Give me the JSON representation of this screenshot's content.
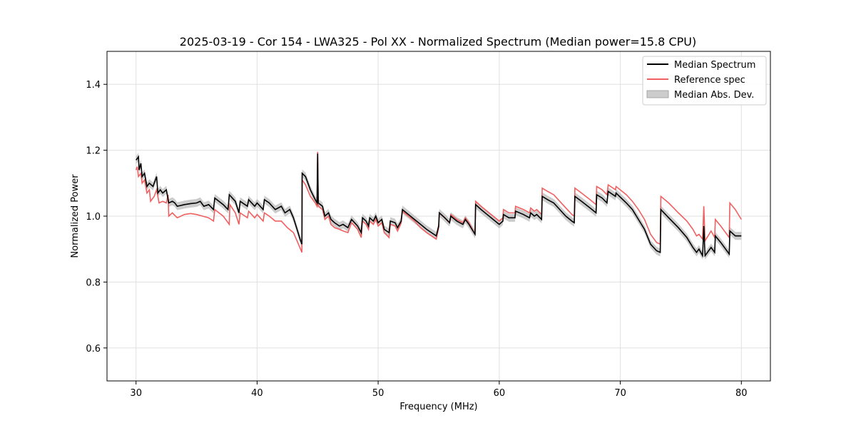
{
  "chart_data": {
    "type": "line",
    "title": "2025-03-19 - Cor 154 - LWA325 - Pol XX - Normalized Spectrum (Median power=15.8 CPU)",
    "xlabel": "Frequency (MHz)",
    "ylabel": "Normalized Power",
    "xlim": [
      27.6,
      82.4
    ],
    "ylim": [
      0.5,
      1.5
    ],
    "xticks": [
      30,
      40,
      50,
      60,
      70,
      80
    ],
    "yticks": [
      0.6,
      0.8,
      1.0,
      1.2,
      1.4
    ],
    "grid": true,
    "legend_position": "upper right",
    "legend": [
      "Median Spectrum",
      "Reference spec",
      "Median Abs. Dev."
    ],
    "colors": {
      "median": "#000000",
      "reference": "#f06060",
      "mad_fill": "#b0b0b0",
      "grid": "#e0e0e0"
    },
    "median_spectrum": [
      [
        30.0,
        1.17
      ],
      [
        30.2,
        1.18
      ],
      [
        30.25,
        1.14
      ],
      [
        30.4,
        1.16
      ],
      [
        30.5,
        1.12
      ],
      [
        30.7,
        1.13
      ],
      [
        30.9,
        1.09
      ],
      [
        31.1,
        1.1
      ],
      [
        31.4,
        1.09
      ],
      [
        31.7,
        1.12
      ],
      [
        31.8,
        1.07
      ],
      [
        32.0,
        1.08
      ],
      [
        32.2,
        1.07
      ],
      [
        32.5,
        1.08
      ],
      [
        32.6,
        1.06
      ],
      [
        32.7,
        1.04
      ],
      [
        33.0,
        1.045
      ],
      [
        33.2,
        1.04
      ],
      [
        33.4,
        1.03
      ],
      [
        34.0,
        1.035
      ],
      [
        34.5,
        1.038
      ],
      [
        35.0,
        1.04
      ],
      [
        35.3,
        1.045
      ],
      [
        35.6,
        1.03
      ],
      [
        36.0,
        1.035
      ],
      [
        36.4,
        1.02
      ],
      [
        36.5,
        1.055
      ],
      [
        37.2,
        1.035
      ],
      [
        37.6,
        1.02
      ],
      [
        37.7,
        1.065
      ],
      [
        38.2,
        1.045
      ],
      [
        38.5,
        1.01
      ],
      [
        38.6,
        1.045
      ],
      [
        39.2,
        1.03
      ],
      [
        39.3,
        1.05
      ],
      [
        39.8,
        1.03
      ],
      [
        40.0,
        1.04
      ],
      [
        40.5,
        1.02
      ],
      [
        40.6,
        1.05
      ],
      [
        41.0,
        1.04
      ],
      [
        41.5,
        1.02
      ],
      [
        42.0,
        1.03
      ],
      [
        42.3,
        1.01
      ],
      [
        42.7,
        1.02
      ],
      [
        43.0,
        0.995
      ],
      [
        43.3,
        0.96
      ],
      [
        43.55,
        0.93
      ],
      [
        43.7,
        0.915
      ],
      [
        43.72,
        1.13
      ],
      [
        44.0,
        1.12
      ],
      [
        44.4,
        1.08
      ],
      [
        44.8,
        1.05
      ],
      [
        44.95,
        1.04
      ],
      [
        45.0,
        1.19
      ],
      [
        45.05,
        1.04
      ],
      [
        45.4,
        1.03
      ],
      [
        45.6,
        1.0
      ],
      [
        45.9,
        1.01
      ],
      [
        46.1,
        0.99
      ],
      [
        46.4,
        0.98
      ],
      [
        46.8,
        0.97
      ],
      [
        47.1,
        0.975
      ],
      [
        47.5,
        0.965
      ],
      [
        47.8,
        0.99
      ],
      [
        48.3,
        0.97
      ],
      [
        48.6,
        0.95
      ],
      [
        48.7,
        0.995
      ],
      [
        49.0,
        0.985
      ],
      [
        49.2,
        0.97
      ],
      [
        49.3,
        0.995
      ],
      [
        49.6,
        0.985
      ],
      [
        49.8,
        1.0
      ],
      [
        50.0,
        0.98
      ],
      [
        50.3,
        0.99
      ],
      [
        50.5,
        0.96
      ],
      [
        50.9,
        0.95
      ],
      [
        51.0,
        0.985
      ],
      [
        51.4,
        0.98
      ],
      [
        51.6,
        0.965
      ],
      [
        51.9,
        0.985
      ],
      [
        52.0,
        1.02
      ],
      [
        52.5,
        1.005
      ],
      [
        53.0,
        0.99
      ],
      [
        53.5,
        0.975
      ],
      [
        54.0,
        0.96
      ],
      [
        54.4,
        0.95
      ],
      [
        54.8,
        0.94
      ],
      [
        55.0,
        0.97
      ],
      [
        55.05,
        1.01
      ],
      [
        55.5,
        0.995
      ],
      [
        55.9,
        0.98
      ],
      [
        56.0,
        1.0
      ],
      [
        56.5,
        0.985
      ],
      [
        57.0,
        0.975
      ],
      [
        57.2,
        0.99
      ],
      [
        57.5,
        0.975
      ],
      [
        58.0,
        0.945
      ],
      [
        58.05,
        1.035
      ],
      [
        58.5,
        1.02
      ],
      [
        59.0,
        1.005
      ],
      [
        59.5,
        0.99
      ],
      [
        60.0,
        0.975
      ],
      [
        60.3,
        0.985
      ],
      [
        60.35,
        1.005
      ],
      [
        60.8,
        0.995
      ],
      [
        61.3,
        0.995
      ],
      [
        61.35,
        1.015
      ],
      [
        62.0,
        1.005
      ],
      [
        62.5,
        0.995
      ],
      [
        62.6,
        1.01
      ],
      [
        62.9,
        1.0
      ],
      [
        63.1,
        1.005
      ],
      [
        63.5,
        0.99
      ],
      [
        63.55,
        1.06
      ],
      [
        64.0,
        1.05
      ],
      [
        64.5,
        1.04
      ],
      [
        65.0,
        1.02
      ],
      [
        65.5,
        1.0
      ],
      [
        66.0,
        0.985
      ],
      [
        66.2,
        0.98
      ],
      [
        66.25,
        1.06
      ],
      [
        66.8,
        1.045
      ],
      [
        67.5,
        1.025
      ],
      [
        68.0,
        1.01
      ],
      [
        68.05,
        1.065
      ],
      [
        68.5,
        1.055
      ],
      [
        68.9,
        1.04
      ],
      [
        69.0,
        1.075
      ],
      [
        69.6,
        1.06
      ],
      [
        69.65,
        1.07
      ],
      [
        70.5,
        1.04
      ],
      [
        71.0,
        1.02
      ],
      [
        71.5,
        0.99
      ],
      [
        72.0,
        0.96
      ],
      [
        72.5,
        0.915
      ],
      [
        73.0,
        0.895
      ],
      [
        73.3,
        0.89
      ],
      [
        73.35,
        1.02
      ],
      [
        74.0,
        0.995
      ],
      [
        74.8,
        0.965
      ],
      [
        75.5,
        0.935
      ],
      [
        76.0,
        0.905
      ],
      [
        76.3,
        0.89
      ],
      [
        76.5,
        0.9
      ],
      [
        76.8,
        0.88
      ],
      [
        76.9,
        0.97
      ],
      [
        77.0,
        0.88
      ],
      [
        77.5,
        0.905
      ],
      [
        77.8,
        0.89
      ],
      [
        77.85,
        0.94
      ],
      [
        78.3,
        0.92
      ],
      [
        78.6,
        0.905
      ],
      [
        78.8,
        0.895
      ],
      [
        79.0,
        0.885
      ],
      [
        79.05,
        0.955
      ],
      [
        79.5,
        0.94
      ],
      [
        80.0,
        0.94
      ]
    ],
    "mad_halfwidth": 0.012,
    "reference_spectrum": [
      [
        30.0,
        1.14
      ],
      [
        30.1,
        1.15
      ],
      [
        30.2,
        1.12
      ],
      [
        30.4,
        1.13
      ],
      [
        30.5,
        1.1
      ],
      [
        30.7,
        1.11
      ],
      [
        30.9,
        1.07
      ],
      [
        31.1,
        1.08
      ],
      [
        31.2,
        1.045
      ],
      [
        31.5,
        1.06
      ],
      [
        31.7,
        1.08
      ],
      [
        31.9,
        1.04
      ],
      [
        32.2,
        1.045
      ],
      [
        32.5,
        1.04
      ],
      [
        32.65,
        1.065
      ],
      [
        32.7,
        1.0
      ],
      [
        33.0,
        1.01
      ],
      [
        33.4,
        0.995
      ],
      [
        34.0,
        1.005
      ],
      [
        34.5,
        1.008
      ],
      [
        35.0,
        1.005
      ],
      [
        35.5,
        1.0
      ],
      [
        36.0,
        0.995
      ],
      [
        36.4,
        0.985
      ],
      [
        36.5,
        1.02
      ],
      [
        37.2,
        1.0
      ],
      [
        37.7,
        0.975
      ],
      [
        37.75,
        1.035
      ],
      [
        38.2,
        1.01
      ],
      [
        38.5,
        0.975
      ],
      [
        38.6,
        1.01
      ],
      [
        39.2,
        0.995
      ],
      [
        39.3,
        1.015
      ],
      [
        39.8,
        0.995
      ],
      [
        40.0,
        1.005
      ],
      [
        40.5,
        0.985
      ],
      [
        40.6,
        1.01
      ],
      [
        41.0,
        1.0
      ],
      [
        41.5,
        0.985
      ],
      [
        42.0,
        0.985
      ],
      [
        42.5,
        0.965
      ],
      [
        43.0,
        0.95
      ],
      [
        43.3,
        0.925
      ],
      [
        43.7,
        0.89
      ],
      [
        43.72,
        1.11
      ],
      [
        44.0,
        1.095
      ],
      [
        44.4,
        1.06
      ],
      [
        44.8,
        1.04
      ],
      [
        44.95,
        1.03
      ],
      [
        45.0,
        1.195
      ],
      [
        45.05,
        1.03
      ],
      [
        45.4,
        1.02
      ],
      [
        45.6,
        0.99
      ],
      [
        45.9,
        1.0
      ],
      [
        46.1,
        0.975
      ],
      [
        46.4,
        0.965
      ],
      [
        46.8,
        0.96
      ],
      [
        47.1,
        0.955
      ],
      [
        47.5,
        0.95
      ],
      [
        47.8,
        0.98
      ],
      [
        48.3,
        0.96
      ],
      [
        48.6,
        0.935
      ],
      [
        48.7,
        0.985
      ],
      [
        49.0,
        0.975
      ],
      [
        49.2,
        0.96
      ],
      [
        49.3,
        0.985
      ],
      [
        49.6,
        0.975
      ],
      [
        49.8,
        0.99
      ],
      [
        50.0,
        0.97
      ],
      [
        50.3,
        0.98
      ],
      [
        50.5,
        0.95
      ],
      [
        50.9,
        0.935
      ],
      [
        51.0,
        0.975
      ],
      [
        51.4,
        0.97
      ],
      [
        51.6,
        0.955
      ],
      [
        51.9,
        0.98
      ],
      [
        52.0,
        1.015
      ],
      [
        52.5,
        1.0
      ],
      [
        53.0,
        0.985
      ],
      [
        53.5,
        0.965
      ],
      [
        54.0,
        0.95
      ],
      [
        54.4,
        0.94
      ],
      [
        54.8,
        0.93
      ],
      [
        55.0,
        0.965
      ],
      [
        55.05,
        1.01
      ],
      [
        55.5,
        0.995
      ],
      [
        55.9,
        0.98
      ],
      [
        56.0,
        1.005
      ],
      [
        56.5,
        0.99
      ],
      [
        57.0,
        0.98
      ],
      [
        57.2,
        0.995
      ],
      [
        57.5,
        0.98
      ],
      [
        58.0,
        0.945
      ],
      [
        58.05,
        1.045
      ],
      [
        58.5,
        1.03
      ],
      [
        59.0,
        1.015
      ],
      [
        59.5,
        1.0
      ],
      [
        60.0,
        0.985
      ],
      [
        60.3,
        0.995
      ],
      [
        60.35,
        1.02
      ],
      [
        60.8,
        1.01
      ],
      [
        61.3,
        1.01
      ],
      [
        61.35,
        1.03
      ],
      [
        62.0,
        1.02
      ],
      [
        62.5,
        1.01
      ],
      [
        62.6,
        1.025
      ],
      [
        62.9,
        1.015
      ],
      [
        63.1,
        1.02
      ],
      [
        63.5,
        1.005
      ],
      [
        63.55,
        1.085
      ],
      [
        64.0,
        1.075
      ],
      [
        64.5,
        1.065
      ],
      [
        65.0,
        1.045
      ],
      [
        65.5,
        1.025
      ],
      [
        66.0,
        1.005
      ],
      [
        66.2,
        1.0
      ],
      [
        66.25,
        1.085
      ],
      [
        66.8,
        1.07
      ],
      [
        67.5,
        1.05
      ],
      [
        68.0,
        1.035
      ],
      [
        68.05,
        1.09
      ],
      [
        68.5,
        1.08
      ],
      [
        68.9,
        1.065
      ],
      [
        69.0,
        1.095
      ],
      [
        69.6,
        1.08
      ],
      [
        69.65,
        1.09
      ],
      [
        70.5,
        1.065
      ],
      [
        71.0,
        1.045
      ],
      [
        71.5,
        1.02
      ],
      [
        72.0,
        0.99
      ],
      [
        72.5,
        0.945
      ],
      [
        73.0,
        0.92
      ],
      [
        73.3,
        0.915
      ],
      [
        73.35,
        1.06
      ],
      [
        74.0,
        1.04
      ],
      [
        74.8,
        1.01
      ],
      [
        75.5,
        0.985
      ],
      [
        76.0,
        0.96
      ],
      [
        76.3,
        0.94
      ],
      [
        76.5,
        0.945
      ],
      [
        76.8,
        0.93
      ],
      [
        76.9,
        1.03
      ],
      [
        77.0,
        0.925
      ],
      [
        77.5,
        0.955
      ],
      [
        77.8,
        0.935
      ],
      [
        77.85,
        0.99
      ],
      [
        78.3,
        0.97
      ],
      [
        78.6,
        0.955
      ],
      [
        78.8,
        0.945
      ],
      [
        79.0,
        0.935
      ],
      [
        79.05,
        1.04
      ],
      [
        79.5,
        1.02
      ],
      [
        80.0,
        0.99
      ]
    ]
  }
}
